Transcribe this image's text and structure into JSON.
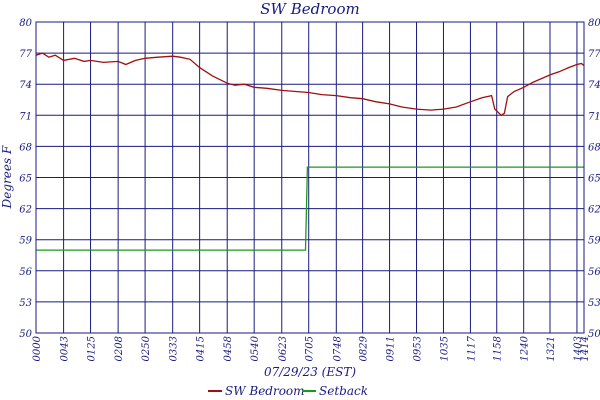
{
  "chart_data": {
    "type": "line",
    "title": "SW Bedroom",
    "xlabel": "07/29/23 (EST)",
    "ylabel": "Degrees F",
    "x_unit": "time of day (HH:MM)",
    "xlim": [
      "00:00",
      "14:14"
    ],
    "ylim": [
      50,
      80
    ],
    "grid": true,
    "legend_position": "bottom-center",
    "y_ticks_left": [
      "50",
      "53",
      "56",
      "59",
      "62",
      "65",
      "68",
      "71",
      "74",
      "77",
      "80"
    ],
    "y_ticks_right": [
      "50",
      "53",
      "56",
      "59",
      "62",
      "65",
      "68",
      "71",
      "74",
      "77",
      "80"
    ],
    "x_ticks": [
      "00:00",
      "00:43",
      "01:25",
      "02:08",
      "02:50",
      "03:33",
      "04:15",
      "04:58",
      "05:40",
      "06:23",
      "07:05",
      "07:48",
      "08:29",
      "09:11",
      "09:53",
      "10:35",
      "11:17",
      "11:58",
      "12:40",
      "13:21",
      "14:03",
      "14:14"
    ],
    "x_tick_labels": [
      "0000",
      "0043",
      "0125",
      "0208",
      "0250",
      "0333",
      "0415",
      "0458",
      "0540",
      "0623",
      "0705",
      "0748",
      "0829",
      "0911",
      "0953",
      "1035",
      "1117",
      "1158",
      "1240",
      "1321",
      "1403",
      "1414"
    ],
    "series": [
      {
        "name": "SW Bedroom",
        "color": "#a01010",
        "points": [
          [
            "00:00",
            76.8
          ],
          [
            "00:10",
            77.0
          ],
          [
            "00:20",
            76.6
          ],
          [
            "00:30",
            76.8
          ],
          [
            "00:43",
            76.3
          ],
          [
            "01:00",
            76.5
          ],
          [
            "01:15",
            76.2
          ],
          [
            "01:25",
            76.3
          ],
          [
            "01:45",
            76.1
          ],
          [
            "02:08",
            76.2
          ],
          [
            "02:20",
            75.9
          ],
          [
            "02:35",
            76.3
          ],
          [
            "02:50",
            76.5
          ],
          [
            "03:10",
            76.6
          ],
          [
            "03:33",
            76.7
          ],
          [
            "03:45",
            76.6
          ],
          [
            "04:00",
            76.4
          ],
          [
            "04:15",
            75.6
          ],
          [
            "04:35",
            74.8
          ],
          [
            "04:58",
            74.1
          ],
          [
            "05:10",
            73.9
          ],
          [
            "05:25",
            74.0
          ],
          [
            "05:40",
            73.7
          ],
          [
            "06:00",
            73.6
          ],
          [
            "06:23",
            73.4
          ],
          [
            "06:45",
            73.3
          ],
          [
            "07:05",
            73.2
          ],
          [
            "07:25",
            73.0
          ],
          [
            "07:48",
            72.9
          ],
          [
            "08:10",
            72.7
          ],
          [
            "08:29",
            72.6
          ],
          [
            "08:50",
            72.3
          ],
          [
            "09:11",
            72.1
          ],
          [
            "09:30",
            71.8
          ],
          [
            "09:53",
            71.6
          ],
          [
            "10:15",
            71.5
          ],
          [
            "10:35",
            71.6
          ],
          [
            "10:55",
            71.8
          ],
          [
            "11:17",
            72.3
          ],
          [
            "11:35",
            72.7
          ],
          [
            "11:50",
            72.9
          ],
          [
            "11:55",
            71.6
          ],
          [
            "12:00",
            71.3
          ],
          [
            "12:05",
            71.0
          ],
          [
            "12:10",
            71.2
          ],
          [
            "12:15",
            72.8
          ],
          [
            "12:25",
            73.3
          ],
          [
            "12:40",
            73.7
          ],
          [
            "12:55",
            74.2
          ],
          [
            "13:10",
            74.6
          ],
          [
            "13:21",
            74.9
          ],
          [
            "13:35",
            75.2
          ],
          [
            "13:50",
            75.6
          ],
          [
            "14:03",
            75.9
          ],
          [
            "14:10",
            76.0
          ],
          [
            "14:14",
            75.8
          ]
        ]
      },
      {
        "name": "Setback",
        "color": "#1a9a1a",
        "points": [
          [
            "00:00",
            58.0
          ],
          [
            "07:00",
            58.0
          ],
          [
            "07:03",
            66.0
          ],
          [
            "14:14",
            66.0
          ]
        ]
      }
    ]
  }
}
